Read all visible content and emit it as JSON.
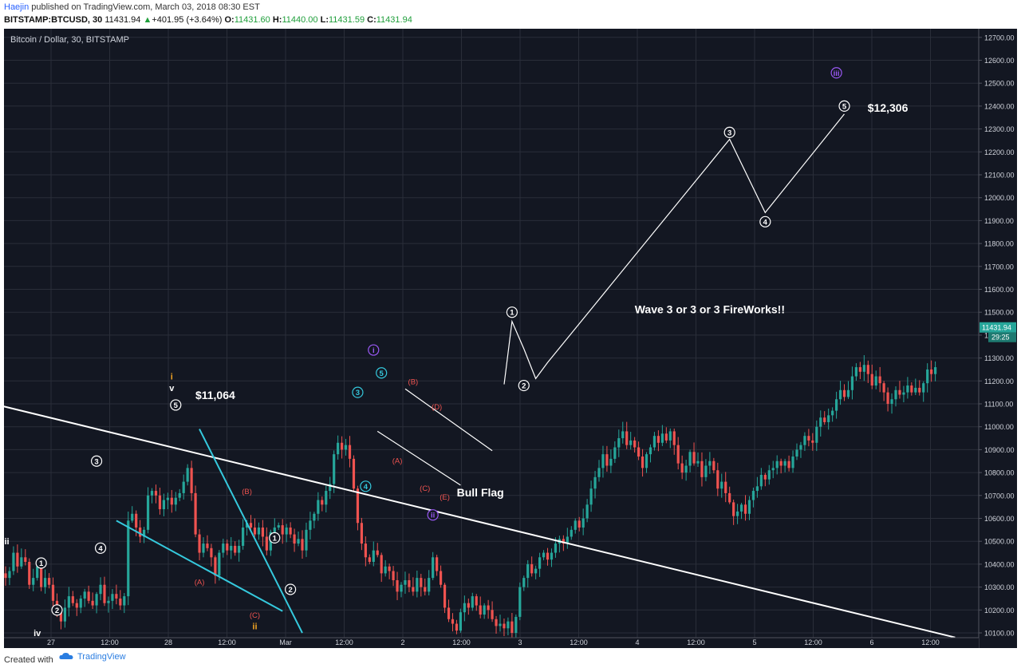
{
  "header": {
    "author": "Haejin",
    "published": " published on TradingView.com, March 03, 2018 08:30 EST",
    "symbol": "BITSTAMP:BTCUSD, 30",
    "last": "11431.94",
    "change": "+401.95 (+3.64%)",
    "o": "11431.60",
    "h": "11440.00",
    "l": "11431.59",
    "c": "11431.94"
  },
  "footer": {
    "created_with": "Created with",
    "brand": "TradingView"
  },
  "chart_data": {
    "type": "candlestick",
    "title": "Bitcoin / Dollar, 30, BITSTAMP",
    "ylim": [
      10100,
      12750
    ],
    "y_ticks": [
      "10100.00",
      "10200.00",
      "10300.00",
      "10400.00",
      "10500.00",
      "10600.00",
      "10700.00",
      "10800.00",
      "10900.00",
      "11000.00",
      "11100.00",
      "11200.00",
      "11300.00",
      "11400.00",
      "11500.00",
      "11600.00",
      "11700.00",
      "11800.00",
      "11900.00",
      "12000.00",
      "12100.00",
      "12200.00",
      "12300.00",
      "12400.00",
      "12500.00",
      "12600.00",
      "12700.00"
    ],
    "x_ticks": [
      "27",
      "12:00",
      "28",
      "12:00",
      "Mar",
      "12:00",
      "2",
      "12:00",
      "3",
      "12:00",
      "4",
      "12:00",
      "5",
      "12:00",
      "6",
      "12:00"
    ],
    "price_tag": {
      "price": "11431.94",
      "countdown": "29:25"
    },
    "colors": {
      "up": "#26a69a",
      "down": "#ef5350",
      "background": "#131722",
      "grid": "#2a2e39",
      "cyan": "#35c9dd",
      "white": "#ffffff",
      "orange": "#f5a623",
      "purple": "#9b59f6",
      "red_label": "#ef5350"
    },
    "anchor": {
      "bar": 0,
      "price": 10360
    },
    "walk": [
      -20,
      30,
      80,
      -60,
      40,
      -20,
      -100,
      30,
      50,
      -90,
      40,
      -30,
      -70,
      -50,
      -40,
      60,
      50,
      -30,
      -20,
      40,
      30,
      -40,
      -20,
      50,
      40,
      -80,
      10,
      30,
      -20,
      -30,
      40,
      330,
      30,
      -60,
      -40,
      30,
      150,
      20,
      -20,
      -60,
      40,
      10,
      -30,
      30,
      20,
      50,
      60,
      -110,
      -180,
      -80,
      40,
      -20,
      -40,
      -80,
      100,
      40,
      -30,
      20,
      -30,
      30,
      80,
      20,
      -20,
      -30,
      30,
      -40,
      -60,
      80,
      20,
      10,
      -40,
      30,
      -30,
      -40,
      20,
      -50,
      90,
      40,
      30,
      60,
      -20,
      60,
      30,
      130,
      50,
      -30,
      20,
      -60,
      -130,
      -150,
      -90,
      -60,
      -20,
      50,
      -20,
      -80,
      30,
      -20,
      -40,
      -50,
      30,
      20,
      -30,
      -20,
      60,
      -40,
      -20,
      60,
      90,
      -60,
      -60,
      -100,
      -50,
      -20,
      -30,
      80,
      40,
      -20,
      50,
      -40,
      -40,
      40,
      -20,
      -40,
      -30,
      10,
      -20,
      30,
      -50,
      70,
      130,
      40,
      60,
      -40,
      20,
      50,
      20,
      -30,
      30,
      40,
      20,
      -20,
      30,
      30,
      40,
      -30,
      40,
      60,
      70,
      50,
      40,
      60,
      -50,
      30,
      50,
      40,
      30,
      -60,
      20,
      -30,
      -40,
      -50,
      60,
      30,
      50,
      -30,
      40,
      -30,
      40,
      -60,
      -80,
      -40,
      30,
      60,
      -50,
      10,
      -70,
      50,
      20,
      -40,
      -80,
      30,
      -50,
      -40,
      -60,
      20,
      30,
      -40,
      60,
      40,
      20,
      50,
      -20,
      40,
      10,
      30,
      -20,
      20,
      -30,
      50,
      30,
      20,
      40,
      -20,
      -10,
      70,
      40,
      -20,
      30,
      20,
      50,
      40,
      -30,
      30,
      60,
      40,
      -20,
      30,
      -40,
      -50,
      40,
      -30,
      -40,
      -50,
      20,
      40,
      -20,
      10,
      30,
      -30,
      20,
      -20,
      40,
      60,
      -20,
      30
    ],
    "lines": [
      {
        "name": "resistance-trendline",
        "color": "white",
        "pts": [
          [
            -2,
            11095
          ],
          [
            240,
            10080
          ]
        ]
      },
      {
        "name": "wedge-upper-line",
        "color": "cyan",
        "pts": [
          [
            49,
            10990
          ],
          [
            75,
            10100
          ]
        ]
      },
      {
        "name": "wedge-lower-line",
        "color": "cyan",
        "pts": [
          [
            28,
            10590
          ],
          [
            70,
            10195
          ]
        ]
      },
      {
        "name": "flag-upper-line",
        "color": "white",
        "pts": [
          [
            101,
            11165
          ],
          [
            123,
            10895
          ]
        ]
      },
      {
        "name": "flag-lower-line",
        "color": "white",
        "pts": [
          [
            94,
            10980
          ],
          [
            115,
            10745
          ]
        ]
      },
      {
        "name": "projection-path",
        "color": "white",
        "pts": [
          [
            126,
            11185
          ],
          [
            128,
            11460
          ],
          [
            131,
            11340
          ],
          [
            134,
            11210
          ],
          [
            137,
            11280
          ],
          [
            183,
            12255
          ],
          [
            192,
            11935
          ],
          [
            212,
            12365
          ]
        ]
      }
    ],
    "labels": [
      {
        "name": "wave-1-label",
        "text": "1",
        "style": "circle-white",
        "bar": 9,
        "price": 10405
      },
      {
        "name": "wave-2-label",
        "text": "2",
        "style": "circle-white",
        "bar": 13,
        "price": 10200
      },
      {
        "name": "wave-3-label",
        "text": "3",
        "style": "circle-white",
        "bar": 23,
        "price": 10850
      },
      {
        "name": "wave-4-label",
        "text": "4",
        "style": "circle-white",
        "bar": 24,
        "price": 10470
      },
      {
        "name": "wave-5-label",
        "text": "5",
        "style": "circle-white",
        "bar": 43,
        "price": 11095
      },
      {
        "name": "wave-iii-label",
        "text": "iii",
        "style": "plain-white",
        "bar": 0,
        "price": 10500
      },
      {
        "name": "wave-iv-label",
        "text": "iv",
        "style": "plain-white",
        "bar": 8,
        "price": 10100
      },
      {
        "name": "wave-v-label",
        "text": "v",
        "style": "plain-white",
        "bar": 42,
        "price": 11170
      },
      {
        "name": "wave-i-orange-label",
        "text": "i",
        "style": "plain-orange",
        "bar": 42,
        "price": 11220
      },
      {
        "name": "wave-ii-orange-label",
        "text": "ii",
        "style": "plain-orange",
        "bar": 63,
        "price": 10130
      },
      {
        "name": "price-11064-label",
        "text": "$11,064",
        "style": "big-white",
        "bar": 53,
        "price": 11135
      },
      {
        "name": "wave-B-label",
        "text": "(B)",
        "style": "plain-red",
        "bar": 61,
        "price": 10720
      },
      {
        "name": "wave-A-label",
        "text": "(A)",
        "style": "plain-red",
        "bar": 49,
        "price": 10325
      },
      {
        "name": "wave-C-label",
        "text": "(C)",
        "style": "plain-red",
        "bar": 63,
        "price": 10180
      },
      {
        "name": "subwave-1-label",
        "text": "1",
        "style": "circle-white",
        "bar": 68,
        "price": 10515
      },
      {
        "name": "subwave-2-label",
        "text": "2",
        "style": "circle-white",
        "bar": 72,
        "price": 10290
      },
      {
        "name": "cyan-3-label",
        "text": "3",
        "style": "circle-cyan",
        "bar": 89,
        "price": 11150
      },
      {
        "name": "cyan-4-label",
        "text": "4",
        "style": "circle-cyan",
        "bar": 91,
        "price": 10740
      },
      {
        "name": "cyan-5-label",
        "text": "5",
        "style": "circle-cyan",
        "bar": 95,
        "price": 11235
      },
      {
        "name": "purple-i-label",
        "text": "i",
        "style": "circle-purple",
        "bar": 93,
        "price": 11335
      },
      {
        "name": "flag-A-label",
        "text": "(A)",
        "style": "plain-red",
        "bar": 99,
        "price": 10855
      },
      {
        "name": "flag-B-label",
        "text": "(B)",
        "style": "plain-red",
        "bar": 103,
        "price": 11200
      },
      {
        "name": "flag-C-label",
        "text": "(C)",
        "style": "plain-red",
        "bar": 106,
        "price": 10735
      },
      {
        "name": "flag-D-label",
        "text": "(D)",
        "style": "plain-red",
        "bar": 109,
        "price": 11090
      },
      {
        "name": "flag-E-label",
        "text": "(E)",
        "style": "plain-red",
        "bar": 111,
        "price": 10695
      },
      {
        "name": "purple-ii-label",
        "text": "ii",
        "style": "circle-purple",
        "bar": 108,
        "price": 10615
      },
      {
        "name": "bull-flag-label",
        "text": "Bull Flag",
        "style": "big-white",
        "bar": 120,
        "price": 10710
      },
      {
        "name": "top-1-label",
        "text": "1",
        "style": "circle-white",
        "bar": 128,
        "price": 11500
      },
      {
        "name": "top-2-label",
        "text": "2",
        "style": "circle-white",
        "bar": 131,
        "price": 11180
      },
      {
        "name": "fireworks-label",
        "text": "Wave 3 or 3 or 3 FireWorks!!",
        "style": "big-white",
        "bar": 178,
        "price": 11510
      },
      {
        "name": "target-3-label",
        "text": "3",
        "style": "circle-white",
        "bar": 183,
        "price": 12285
      },
      {
        "name": "target-4-label",
        "text": "4",
        "style": "circle-white",
        "bar": 192,
        "price": 11895
      },
      {
        "name": "target-5-label",
        "text": "5",
        "style": "circle-white",
        "bar": 212,
        "price": 12400
      },
      {
        "name": "target-iii-label",
        "text": "iii",
        "style": "circle-purple",
        "bar": 210,
        "price": 12545
      },
      {
        "name": "price-12306-label",
        "text": "$12,306",
        "style": "big-white",
        "bar": 223,
        "price": 12390
      }
    ]
  }
}
